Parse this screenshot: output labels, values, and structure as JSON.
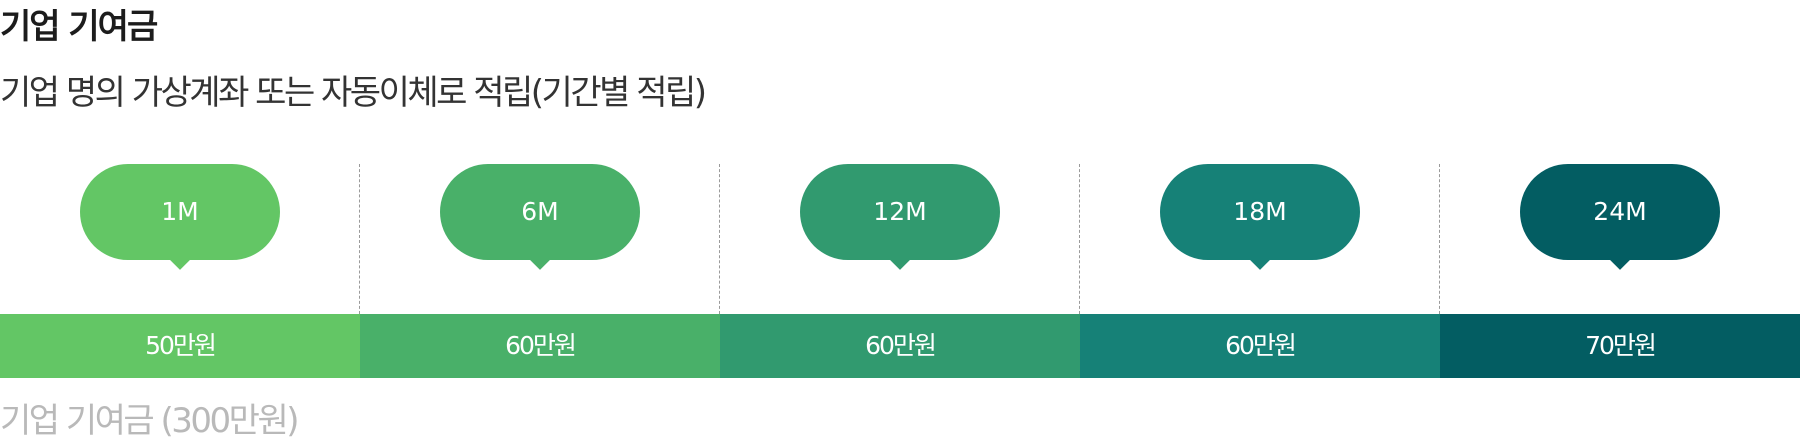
{
  "header": {
    "title": "기업 기여금",
    "subtitle": "기업 명의 가상계좌 또는 자동이체로 적립(기간별 적립)"
  },
  "timeline": {
    "stages": [
      {
        "period": "1M",
        "amount": "50만원",
        "color": "#63c665"
      },
      {
        "period": "6M",
        "amount": "60만원",
        "color": "#49b069"
      },
      {
        "period": "12M",
        "amount": "60만원",
        "color": "#319a6f"
      },
      {
        "period": "18M",
        "amount": "60만원",
        "color": "#168177"
      },
      {
        "period": "24M",
        "amount": "70만원",
        "color": "#035d62"
      }
    ]
  },
  "footer": {
    "total_label": "기업 기여금 (300만원)"
  }
}
